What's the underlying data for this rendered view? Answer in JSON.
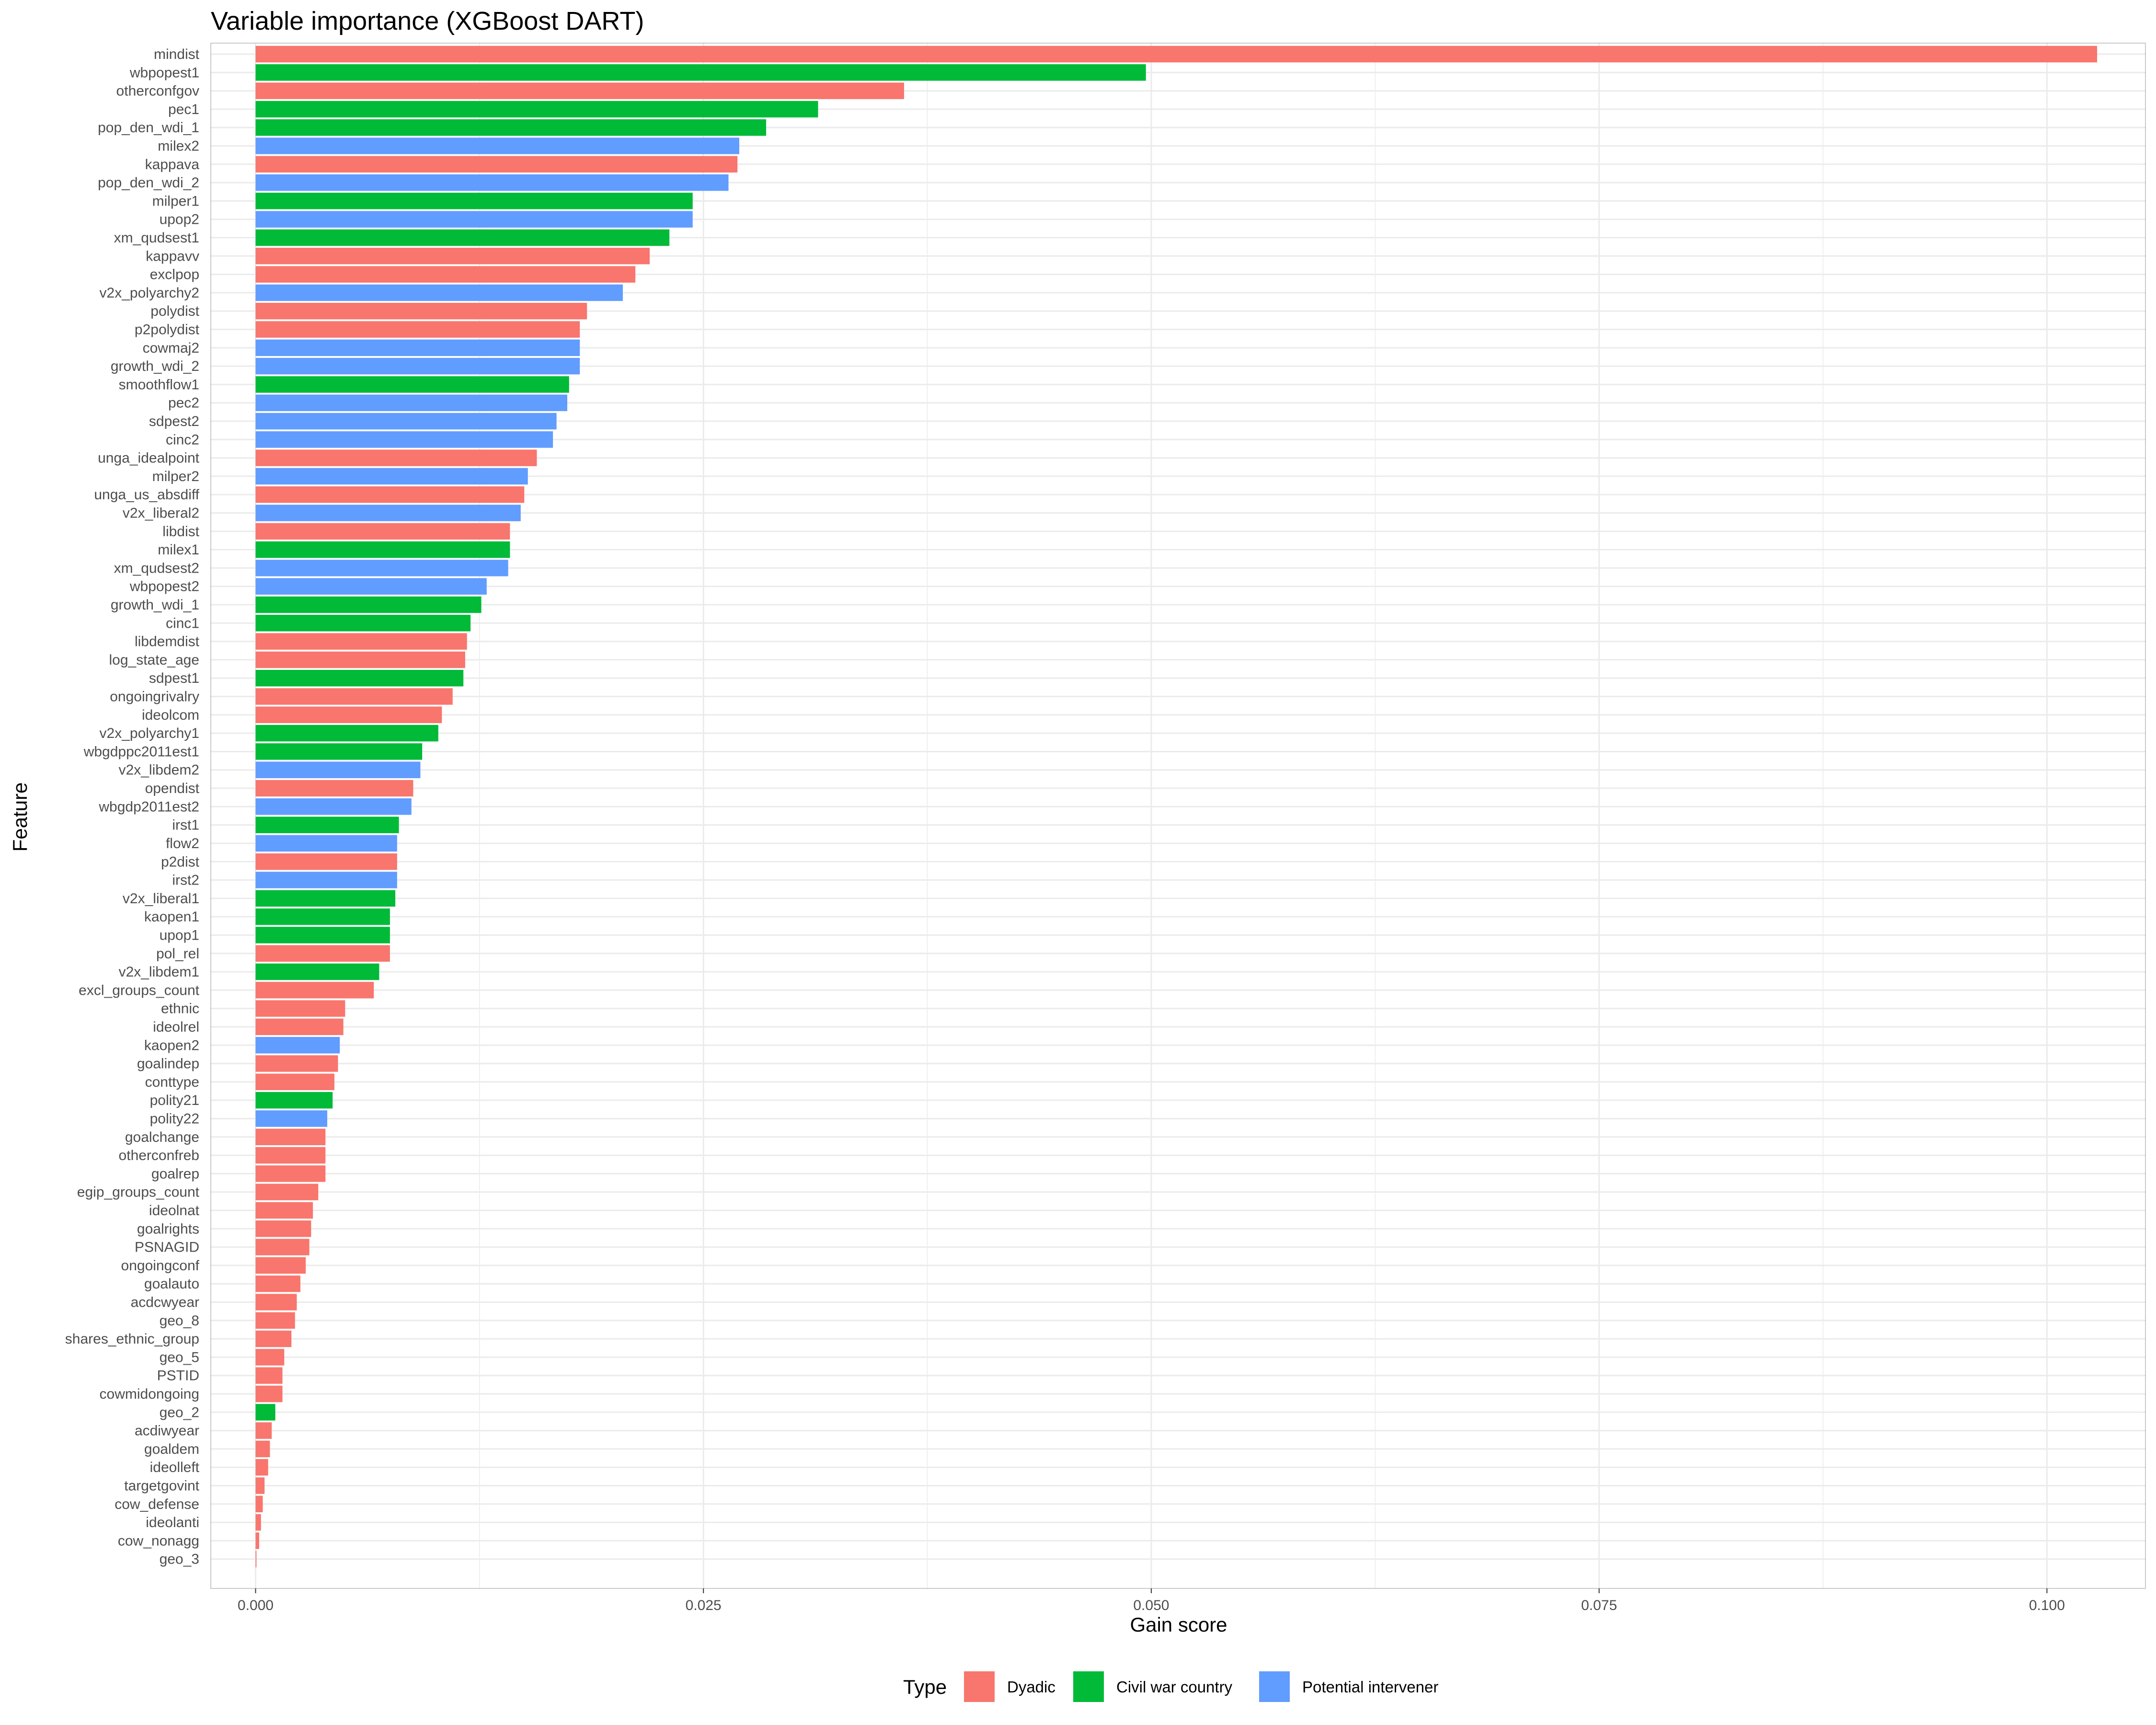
{
  "chart_data": {
    "type": "bar",
    "orientation": "horizontal",
    "title": "Variable importance (XGBoost DART)",
    "xlabel": "Gain score",
    "ylabel": "Feature",
    "xlim": [
      -0.0025,
      0.1055
    ],
    "xticks": [
      "0.000",
      "0.025",
      "0.050",
      "0.075",
      "0.100"
    ],
    "grid": true,
    "legend": {
      "title": "Type",
      "position": "bottom",
      "entries": [
        {
          "name": "Dyadic",
          "color": "#F8766D"
        },
        {
          "name": "Civil war country",
          "color": "#00BA38"
        },
        {
          "name": "Potential intervener",
          "color": "#619CFF"
        }
      ]
    },
    "bars": [
      {
        "feature": "mindist",
        "value": 0.1028,
        "type": "Dyadic"
      },
      {
        "feature": "wbpopest1",
        "value": 0.0497,
        "type": "Civil war country"
      },
      {
        "feature": "otherconfgov",
        "value": 0.0362,
        "type": "Dyadic"
      },
      {
        "feature": "pec1",
        "value": 0.0314,
        "type": "Civil war country"
      },
      {
        "feature": "pop_den_wdi_1",
        "value": 0.0285,
        "type": "Civil war country"
      },
      {
        "feature": "milex2",
        "value": 0.027,
        "type": "Potential intervener"
      },
      {
        "feature": "kappava",
        "value": 0.0269,
        "type": "Dyadic"
      },
      {
        "feature": "pop_den_wdi_2",
        "value": 0.0264,
        "type": "Potential intervener"
      },
      {
        "feature": "milper1",
        "value": 0.0244,
        "type": "Civil war country"
      },
      {
        "feature": "upop2",
        "value": 0.0244,
        "type": "Potential intervener"
      },
      {
        "feature": "xm_qudsest1",
        "value": 0.0231,
        "type": "Civil war country"
      },
      {
        "feature": "kappavv",
        "value": 0.022,
        "type": "Dyadic"
      },
      {
        "feature": "exclpop",
        "value": 0.0212,
        "type": "Dyadic"
      },
      {
        "feature": "v2x_polyarchy2",
        "value": 0.0205,
        "type": "Potential intervener"
      },
      {
        "feature": "polydist",
        "value": 0.0185,
        "type": "Dyadic"
      },
      {
        "feature": "p2polydist",
        "value": 0.0181,
        "type": "Dyadic"
      },
      {
        "feature": "cowmaj2",
        "value": 0.0181,
        "type": "Potential intervener"
      },
      {
        "feature": "growth_wdi_2",
        "value": 0.0181,
        "type": "Potential intervener"
      },
      {
        "feature": "smoothflow1",
        "value": 0.0175,
        "type": "Civil war country"
      },
      {
        "feature": "pec2",
        "value": 0.0174,
        "type": "Potential intervener"
      },
      {
        "feature": "sdpest2",
        "value": 0.0168,
        "type": "Potential intervener"
      },
      {
        "feature": "cinc2",
        "value": 0.0166,
        "type": "Potential intervener"
      },
      {
        "feature": "unga_idealpoint",
        "value": 0.0157,
        "type": "Dyadic"
      },
      {
        "feature": "milper2",
        "value": 0.0152,
        "type": "Potential intervener"
      },
      {
        "feature": "unga_us_absdiff",
        "value": 0.015,
        "type": "Dyadic"
      },
      {
        "feature": "v2x_liberal2",
        "value": 0.0148,
        "type": "Potential intervener"
      },
      {
        "feature": "libdist",
        "value": 0.0142,
        "type": "Dyadic"
      },
      {
        "feature": "milex1",
        "value": 0.0142,
        "type": "Civil war country"
      },
      {
        "feature": "xm_qudsest2",
        "value": 0.0141,
        "type": "Potential intervener"
      },
      {
        "feature": "wbpopest2",
        "value": 0.0129,
        "type": "Potential intervener"
      },
      {
        "feature": "growth_wdi_1",
        "value": 0.0126,
        "type": "Civil war country"
      },
      {
        "feature": "cinc1",
        "value": 0.012,
        "type": "Civil war country"
      },
      {
        "feature": "libdemdist",
        "value": 0.0118,
        "type": "Dyadic"
      },
      {
        "feature": "log_state_age",
        "value": 0.0117,
        "type": "Dyadic"
      },
      {
        "feature": "sdpest1",
        "value": 0.0116,
        "type": "Civil war country"
      },
      {
        "feature": "ongoingrivalry",
        "value": 0.011,
        "type": "Dyadic"
      },
      {
        "feature": "ideolcom",
        "value": 0.0104,
        "type": "Dyadic"
      },
      {
        "feature": "v2x_polyarchy1",
        "value": 0.0102,
        "type": "Civil war country"
      },
      {
        "feature": "wbgdppc2011est1",
        "value": 0.0093,
        "type": "Civil war country"
      },
      {
        "feature": "v2x_libdem2",
        "value": 0.0092,
        "type": "Potential intervener"
      },
      {
        "feature": "opendist",
        "value": 0.0088,
        "type": "Dyadic"
      },
      {
        "feature": "wbgdp2011est2",
        "value": 0.0087,
        "type": "Potential intervener"
      },
      {
        "feature": "irst1",
        "value": 0.008,
        "type": "Civil war country"
      },
      {
        "feature": "flow2",
        "value": 0.0079,
        "type": "Potential intervener"
      },
      {
        "feature": "p2dist",
        "value": 0.0079,
        "type": "Dyadic"
      },
      {
        "feature": "irst2",
        "value": 0.0079,
        "type": "Potential intervener"
      },
      {
        "feature": "v2x_liberal1",
        "value": 0.0078,
        "type": "Civil war country"
      },
      {
        "feature": "kaopen1",
        "value": 0.0075,
        "type": "Civil war country"
      },
      {
        "feature": "upop1",
        "value": 0.0075,
        "type": "Civil war country"
      },
      {
        "feature": "pol_rel",
        "value": 0.0075,
        "type": "Dyadic"
      },
      {
        "feature": "v2x_libdem1",
        "value": 0.0069,
        "type": "Civil war country"
      },
      {
        "feature": "excl_groups_count",
        "value": 0.0066,
        "type": "Dyadic"
      },
      {
        "feature": "ethnic",
        "value": 0.005,
        "type": "Dyadic"
      },
      {
        "feature": "ideolrel",
        "value": 0.0049,
        "type": "Dyadic"
      },
      {
        "feature": "kaopen2",
        "value": 0.0047,
        "type": "Potential intervener"
      },
      {
        "feature": "goalindep",
        "value": 0.0046,
        "type": "Dyadic"
      },
      {
        "feature": "conttype",
        "value": 0.0044,
        "type": "Dyadic"
      },
      {
        "feature": "polity21",
        "value": 0.0043,
        "type": "Civil war country"
      },
      {
        "feature": "polity22",
        "value": 0.004,
        "type": "Potential intervener"
      },
      {
        "feature": "goalchange",
        "value": 0.0039,
        "type": "Dyadic"
      },
      {
        "feature": "otherconfreb",
        "value": 0.0039,
        "type": "Dyadic"
      },
      {
        "feature": "goalrep",
        "value": 0.0039,
        "type": "Dyadic"
      },
      {
        "feature": "egip_groups_count",
        "value": 0.0035,
        "type": "Dyadic"
      },
      {
        "feature": "ideolnat",
        "value": 0.0032,
        "type": "Dyadic"
      },
      {
        "feature": "goalrights",
        "value": 0.0031,
        "type": "Dyadic"
      },
      {
        "feature": "PSNAGID",
        "value": 0.003,
        "type": "Dyadic"
      },
      {
        "feature": "ongoingconf",
        "value": 0.0028,
        "type": "Dyadic"
      },
      {
        "feature": "goalauto",
        "value": 0.0025,
        "type": "Dyadic"
      },
      {
        "feature": "acdcwyear",
        "value": 0.0023,
        "type": "Dyadic"
      },
      {
        "feature": "geo_8",
        "value": 0.0022,
        "type": "Dyadic"
      },
      {
        "feature": "shares_ethnic_group",
        "value": 0.002,
        "type": "Dyadic"
      },
      {
        "feature": "geo_5",
        "value": 0.0016,
        "type": "Dyadic"
      },
      {
        "feature": "PSTID",
        "value": 0.0015,
        "type": "Dyadic"
      },
      {
        "feature": "cowmidongoing",
        "value": 0.0015,
        "type": "Dyadic"
      },
      {
        "feature": "geo_2",
        "value": 0.0011,
        "type": "Civil war country"
      },
      {
        "feature": "acdiwyear",
        "value": 0.0009,
        "type": "Dyadic"
      },
      {
        "feature": "goaldem",
        "value": 0.0008,
        "type": "Dyadic"
      },
      {
        "feature": "ideolleft",
        "value": 0.0007,
        "type": "Dyadic"
      },
      {
        "feature": "targetgovint",
        "value": 0.0005,
        "type": "Dyadic"
      },
      {
        "feature": "cow_defense",
        "value": 0.0004,
        "type": "Dyadic"
      },
      {
        "feature": "ideolanti",
        "value": 0.0003,
        "type": "Dyadic"
      },
      {
        "feature": "cow_nonagg",
        "value": 0.0002,
        "type": "Dyadic"
      },
      {
        "feature": "geo_3",
        "value": 5e-05,
        "type": "Dyadic"
      }
    ]
  }
}
